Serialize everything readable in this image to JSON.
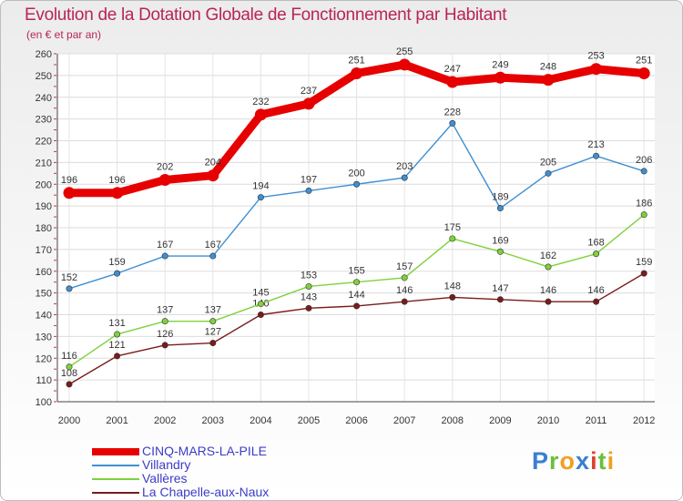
{
  "chart_data": {
    "type": "line",
    "title": "Evolution de la Dotation Globale de Fonctionnement par Habitant",
    "subtitle": "(en € et par an)",
    "x": [
      "2000",
      "2001",
      "2002",
      "2003",
      "2004",
      "2005",
      "2006",
      "2007",
      "2008",
      "2009",
      "2010",
      "2011",
      "2012"
    ],
    "ylim": [
      100,
      260
    ],
    "yticks": [
      100,
      110,
      120,
      130,
      140,
      150,
      160,
      170,
      180,
      190,
      200,
      210,
      220,
      230,
      240,
      250,
      260
    ],
    "grid": true,
    "series": [
      {
        "name": "CINQ-MARS-LA-PILE",
        "color": "#e60000",
        "values": [
          196,
          196,
          202,
          204,
          232,
          237,
          251,
          255,
          247,
          249,
          248,
          253,
          251
        ]
      },
      {
        "name": "Villandry",
        "color": "#3f8fd1",
        "values": [
          152,
          159,
          167,
          167,
          194,
          197,
          200,
          203,
          228,
          189,
          205,
          213,
          206
        ]
      },
      {
        "name": "Vallères",
        "color": "#7fd13b",
        "values": [
          116,
          131,
          137,
          137,
          145,
          153,
          155,
          157,
          175,
          169,
          162,
          168,
          186
        ]
      },
      {
        "name": "La Chapelle-aux-Naux",
        "color": "#7a1b1b",
        "values": [
          108,
          121,
          126,
          127,
          140,
          143,
          144,
          146,
          148,
          147,
          146,
          146,
          159
        ]
      }
    ]
  },
  "logo": {
    "letters": [
      "P",
      "r",
      "o",
      "x",
      "i",
      "t",
      "i"
    ],
    "colors": [
      "#3a7fd0",
      "#6bbf3a",
      "#f0a020",
      "#3a7fd0",
      "#e04030",
      "#6bbf3a",
      "#f0a020"
    ]
  }
}
